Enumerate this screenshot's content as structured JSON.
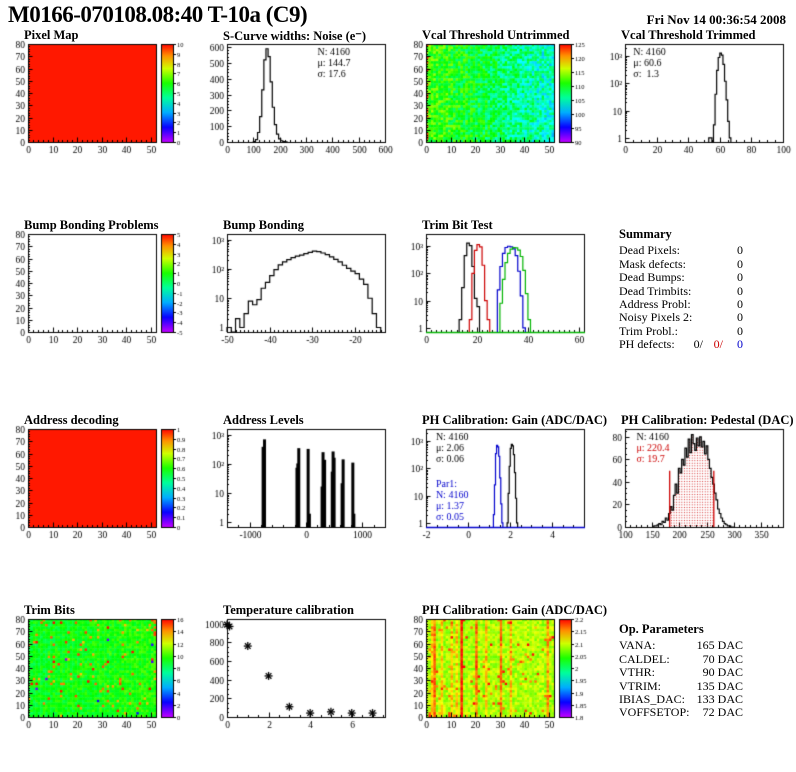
{
  "palette": {
    "frame": "#000000",
    "root_red": "#cc0000",
    "root_blue": "#0000cc",
    "root_green": "#00b400",
    "map_red": "#ff0000"
  },
  "header": {
    "title": "M0166-070108.08:40 T-10a (C9)",
    "date": "Fri Nov 14 00:36:54 2008"
  },
  "chart_data": [
    {
      "id": "pixel-map",
      "title": "Pixel Map",
      "type": "heatmap",
      "seed": 11,
      "x": {
        "min": 0,
        "max": 52,
        "ticks": [
          0,
          10,
          20,
          30,
          40,
          50
        ],
        "minor": 5
      },
      "y": {
        "min": 0,
        "max": 80,
        "ticks": [
          0,
          10,
          20,
          30,
          40,
          50,
          60,
          70,
          80
        ],
        "minor": 5
      },
      "heat": {
        "mode": "uniform",
        "value": 0.98
      },
      "colorbar": {
        "labels": [
          "10",
          "9",
          "8",
          "7",
          "6",
          "5",
          "4",
          "3",
          "2",
          "1",
          "0"
        ]
      }
    },
    {
      "id": "scurve-noise",
      "title": "S-Curve widths: Noise (e⁻)",
      "type": "hist",
      "scale": "lin",
      "x": {
        "min": 0,
        "max": 600,
        "ticks": [
          0,
          100,
          200,
          300,
          400,
          500,
          600
        ],
        "minor": 5
      },
      "y": {
        "min": 0,
        "max": 620,
        "ticks": [
          0,
          100,
          200,
          300,
          400,
          500,
          600
        ],
        "minor": 5
      },
      "series": [
        {
          "color": "#000000",
          "x0": 100,
          "binw": 8,
          "counts": [
            3,
            15,
            60,
            160,
            330,
            520,
            590,
            540,
            380,
            220,
            110,
            50,
            20,
            8,
            3,
            1
          ]
        }
      ],
      "stats": [
        {
          "fx": 0.56,
          "fy": 0.02,
          "lines": [
            {
              "text": "N: 4160",
              "color": "#000000"
            },
            {
              "text": "μ: 144.7",
              "color": "#000000"
            },
            {
              "text": "σ: 17.6",
              "color": "#000000"
            }
          ]
        }
      ]
    },
    {
      "id": "vcal-threshold-untrimmed",
      "title": "Vcal Threshold Untrimmed",
      "type": "heatmap",
      "seed": 23,
      "x": {
        "min": 0,
        "max": 52,
        "ticks": [
          0,
          10,
          20,
          30,
          40,
          50
        ],
        "minor": 5
      },
      "y": {
        "min": 0,
        "max": 80,
        "ticks": [
          0,
          10,
          20,
          30,
          40,
          50,
          60,
          70,
          80
        ],
        "minor": 5
      },
      "heat": {
        "mode": "noise",
        "nx": 52,
        "ny": 40,
        "base": 0.52,
        "gradient": -0.22,
        "spread": 0.22,
        "left_hot": true
      },
      "colorbar": {
        "labels": [
          "125",
          "120",
          "115",
          "110",
          "105",
          "100",
          "95",
          "90"
        ]
      }
    },
    {
      "id": "vcal-threshold-trimmed",
      "title": "Vcal Threshold Trimmed",
      "type": "hist",
      "scale": "log",
      "x": {
        "min": 0,
        "max": 100,
        "ticks": [
          0,
          20,
          40,
          60,
          80,
          100
        ],
        "minor": 4
      },
      "y": {
        "logmax": 3.45
      },
      "series": [
        {
          "color": "#000000",
          "x0": 53,
          "binw": 1,
          "counts": [
            1,
            1,
            0,
            3,
            40,
            300,
            900,
            1300,
            1100,
            500,
            120,
            25,
            4,
            1
          ]
        }
      ],
      "stats": [
        {
          "fx": 0.04,
          "fy": 0.02,
          "lines": [
            {
              "text": "N: 4160",
              "color": "#000000"
            },
            {
              "text": "μ: 60.6",
              "color": "#000000"
            },
            {
              "text": "σ:  1.3",
              "color": "#000000"
            }
          ]
        }
      ]
    },
    {
      "id": "bump-bonding-problems",
      "title": "Bump Bonding Problems",
      "type": "heatmap",
      "seed": 5,
      "x": {
        "min": 0,
        "max": 52,
        "ticks": [
          0,
          10,
          20,
          30,
          40,
          50
        ],
        "minor": 5
      },
      "y": {
        "min": 0,
        "max": 80,
        "ticks": [
          0,
          10,
          20,
          30,
          40,
          50,
          60,
          70,
          80
        ],
        "minor": 5
      },
      "heat": {
        "mode": "empty"
      },
      "colorbar": {
        "labels": [
          "5",
          "4",
          "3",
          "2",
          "1",
          "0",
          "-1",
          "-2",
          "-3",
          "-4",
          "-5"
        ]
      }
    },
    {
      "id": "bump-bonding",
      "title": "Bump Bonding",
      "type": "hist",
      "scale": "log",
      "x": {
        "min": -50,
        "max": -13,
        "ticks": [
          -50,
          -40,
          -30,
          -20
        ],
        "minor": 10
      },
      "y": {
        "logmax": 3.2
      },
      "series": [
        {
          "color": "#000000",
          "x0": -50,
          "binw": 1,
          "counts": [
            1,
            0,
            2,
            1,
            3,
            8,
            6,
            9,
            22,
            35,
            60,
            95,
            140,
            175,
            210,
            245,
            275,
            300,
            340,
            375,
            410,
            395,
            355,
            310,
            260,
            215,
            175,
            135,
            105,
            85,
            70,
            45,
            30,
            10,
            3,
            1
          ]
        }
      ],
      "stats": []
    },
    {
      "id": "trim-bit-test",
      "title": "Trim Bit Test",
      "type": "hist",
      "scale": "log",
      "frame_bottom": "#00b400",
      "x": {
        "min": 0,
        "max": 62,
        "ticks": [
          0,
          20,
          40,
          60
        ],
        "minor": 10
      },
      "y": {
        "logmax": 3.45
      },
      "series": [
        {
          "color": "#000000",
          "x0": 13,
          "binw": 1,
          "counts": [
            2,
            30,
            450,
            1300,
            1050,
            180,
            12,
            6
          ]
        },
        {
          "color": "#cc0000",
          "x0": 17,
          "binw": 1,
          "counts": [
            2,
            100,
            700,
            1150,
            950,
            200,
            10,
            2
          ]
        },
        {
          "color": "#0000cc",
          "x0": 28,
          "binw": 1,
          "counts": [
            25,
            180,
            550,
            900,
            1000,
            950,
            800,
            450,
            120,
            15,
            1
          ]
        },
        {
          "color": "#00b400",
          "x0": 29,
          "binw": 1,
          "counts": [
            8,
            60,
            250,
            550,
            780,
            900,
            870,
            720,
            420,
            130,
            18,
            2
          ]
        }
      ],
      "stats": []
    },
    {
      "id": "address-decoding",
      "title": "Address decoding",
      "type": "heatmap",
      "seed": 31,
      "x": {
        "min": 0,
        "max": 52,
        "ticks": [
          0,
          10,
          20,
          30,
          40,
          50
        ],
        "minor": 5
      },
      "y": {
        "min": 0,
        "max": 80,
        "ticks": [
          0,
          10,
          20,
          30,
          40,
          50,
          60,
          70,
          80
        ],
        "minor": 5
      },
      "heat": {
        "mode": "uniform",
        "value": 0.98
      },
      "colorbar": {
        "labels": [
          "1",
          "0.9",
          "0.8",
          "0.7",
          "0.6",
          "0.5",
          "0.4",
          "0.3",
          "0.2",
          "0.1",
          "0"
        ]
      }
    },
    {
      "id": "address-levels",
      "title": "Address Levels",
      "type": "spikes",
      "scale": "log",
      "x": {
        "min": -1400,
        "max": 1400,
        "ticks": [
          -1000,
          0,
          1000
        ],
        "minor": 5
      },
      "y": {
        "logmax": 3.2
      },
      "spikes": [
        [
          -760,
          390
        ],
        [
          -735,
          700
        ],
        [
          -160,
          75
        ],
        [
          -145,
          105
        ],
        [
          -128,
          350
        ],
        [
          38,
          330
        ],
        [
          60,
          2
        ],
        [
          285,
          17
        ],
        [
          302,
          255
        ],
        [
          330,
          140
        ],
        [
          465,
          55
        ],
        [
          480,
          270
        ],
        [
          498,
          165
        ],
        [
          640,
          22
        ],
        [
          658,
          145
        ],
        [
          830,
          112
        ],
        [
          848,
          2
        ]
      ],
      "stats": []
    },
    {
      "id": "ph-calibration-gain-hist",
      "title": "PH Calibration: Gain (ADC/DAC)",
      "type": "hist",
      "scale": "log",
      "frame_bottom": "#0000cc",
      "x": {
        "min": -2,
        "max": 5.5,
        "ticks": [
          -2,
          0,
          2,
          4
        ],
        "minor": 4
      },
      "y": {
        "logmax": 3.45
      },
      "series": [
        {
          "color": "#0000cc",
          "x0": 1.2,
          "binw": 0.05,
          "counts": [
            2,
            25,
            350,
            700,
            620,
            280,
            45,
            5,
            1
          ]
        },
        {
          "color": "#000000",
          "x0": 1.85,
          "binw": 0.05,
          "counts": [
            1,
            12,
            120,
            550,
            760,
            680,
            320,
            70,
            8,
            1
          ]
        }
      ],
      "stats": [
        {
          "fx": 0.05,
          "fy": 0.02,
          "lines": [
            {
              "text": "N: 4160",
              "color": "#000000"
            },
            {
              "text": "μ: 2.06",
              "color": "#000000"
            },
            {
              "text": "σ: 0.06",
              "color": "#000000"
            }
          ]
        },
        {
          "fx": 0.05,
          "fy": 0.5,
          "lines": [
            {
              "text": "Par1:",
              "color": "#0000cc"
            },
            {
              "text": "N: 4160",
              "color": "#0000cc"
            },
            {
              "text": "μ: 1.37",
              "color": "#0000cc"
            },
            {
              "text": "σ: 0.05",
              "color": "#0000cc"
            }
          ]
        }
      ]
    },
    {
      "id": "ph-calibration-pedestal",
      "title": "PH Calibration: Pedestal (DAC)",
      "type": "hist",
      "scale": "lin",
      "x": {
        "min": 100,
        "max": 390,
        "ticks": [
          100,
          150,
          200,
          250,
          300,
          350
        ],
        "minor": 5
      },
      "y": {
        "min": 0,
        "max": 87,
        "ticks": [
          0,
          20,
          40,
          60,
          80
        ],
        "minor": 4
      },
      "series": [
        {
          "color": "#000000",
          "x0": 150,
          "binw": 3,
          "counts": [
            0,
            1,
            1,
            2,
            3,
            2,
            5,
            4,
            8,
            6,
            12,
            18,
            15,
            28,
            38,
            30,
            52,
            48,
            60,
            55,
            70,
            62,
            78,
            66,
            82,
            74,
            68,
            79,
            72,
            80,
            71,
            76,
            65,
            72,
            60,
            52,
            44,
            38,
            30,
            24,
            16,
            12,
            8,
            5,
            3,
            2,
            1,
            1,
            0,
            0
          ]
        }
      ],
      "fit": {
        "lines": [
          182,
          263
        ],
        "height": 50,
        "color": "#cc0000",
        "hatch": true
      },
      "stats": [
        {
          "fx": 0.06,
          "fy": 0.02,
          "lines": [
            {
              "text": "N: 4160",
              "color": "#000000"
            },
            {
              "text": "μ: 220.4",
              "color": "#cc0000"
            },
            {
              "text": "σ: 19.7",
              "color": "#cc0000"
            }
          ]
        }
      ]
    },
    {
      "id": "trim-bits-map",
      "title": "Trim Bits",
      "type": "heatmap",
      "seed": 47,
      "x": {
        "min": 0,
        "max": 52,
        "ticks": [
          0,
          10,
          20,
          30,
          40,
          50
        ],
        "minor": 5
      },
      "y": {
        "min": 0,
        "max": 80,
        "ticks": [
          0,
          10,
          20,
          30,
          40,
          50,
          60,
          70,
          80
        ],
        "minor": 5
      },
      "heat": {
        "mode": "noise",
        "nx": 52,
        "ny": 40,
        "base": 0.58,
        "gradient": 0.04,
        "spread": 0.12,
        "hot": 0.05,
        "cold": 0.005
      },
      "colorbar": {
        "labels": [
          "16",
          "14",
          "12",
          "10",
          "8",
          "6",
          "4",
          "2",
          "0"
        ]
      }
    },
    {
      "id": "temperature-calibration",
      "title": "Temperature calibration",
      "type": "scatter",
      "x": {
        "min": 0,
        "max": 7.6,
        "ticks": [
          0,
          2,
          4,
          6
        ],
        "minor": 4
      },
      "y": {
        "min": 0,
        "max": 1050,
        "ticks": [
          0,
          200,
          400,
          600,
          800,
          1000
        ],
        "minor": 4
      },
      "points": [
        [
          0,
          990
        ],
        [
          0.12,
          970
        ],
        [
          1,
          760
        ],
        [
          2,
          440
        ],
        [
          3,
          110
        ],
        [
          4,
          42
        ],
        [
          5,
          55
        ],
        [
          6,
          42
        ],
        [
          7,
          42
        ]
      ],
      "stats": []
    },
    {
      "id": "ph-calibration-gain-map",
      "title": "PH Calibration: Gain (ADC/DAC)",
      "type": "heatmap",
      "seed": 63,
      "x": {
        "min": 0,
        "max": 52,
        "ticks": [
          0,
          10,
          20,
          30,
          40,
          50
        ],
        "minor": 5
      },
      "y": {
        "min": 0,
        "max": 80,
        "ticks": [
          0,
          10,
          20,
          30,
          40,
          50,
          60,
          70,
          80
        ],
        "minor": 5
      },
      "heat": {
        "mode": "noise",
        "nx": 52,
        "ny": 40,
        "base": 0.72,
        "gradient": 0,
        "spread": 0.12,
        "hot": 0.05,
        "streaks": 12
      },
      "colorbar": {
        "labels": [
          "2.2",
          "2.15",
          "2.1",
          "2.05",
          "2",
          "1.95",
          "1.9",
          "1.85",
          "1.8"
        ]
      }
    }
  ],
  "summary": {
    "heading": "Summary",
    "rows": [
      {
        "label": "Dead Pixels:",
        "value": "0"
      },
      {
        "label": "Mask defects:",
        "value": "0"
      },
      {
        "label": "Dead Bumps:",
        "value": "0"
      },
      {
        "label": "Dead Trimbits:",
        "value": "0"
      },
      {
        "label": "Address Probl:",
        "value": "0"
      },
      {
        "label": "Noisy Pixels 2:",
        "value": "0"
      },
      {
        "label": "Trim Probl.:",
        "value": "0"
      }
    ],
    "ph_label": "PH defects:",
    "ph_values": [
      "0/",
      "0/",
      "0"
    ]
  },
  "op_parameters": {
    "heading": "Op. Parameters",
    "rows": [
      {
        "label": "VANA:",
        "value": "165 DAC"
      },
      {
        "label": "CALDEL:",
        "value": "70 DAC"
      },
      {
        "label": "VTHR:",
        "value": "90 DAC"
      },
      {
        "label": "VTRIM:",
        "value": "135 DAC"
      },
      {
        "label": "IBIAS_DAC:",
        "value": "133 DAC"
      },
      {
        "label": "VOFFSETOP:",
        "value": "72 DAC"
      }
    ]
  }
}
